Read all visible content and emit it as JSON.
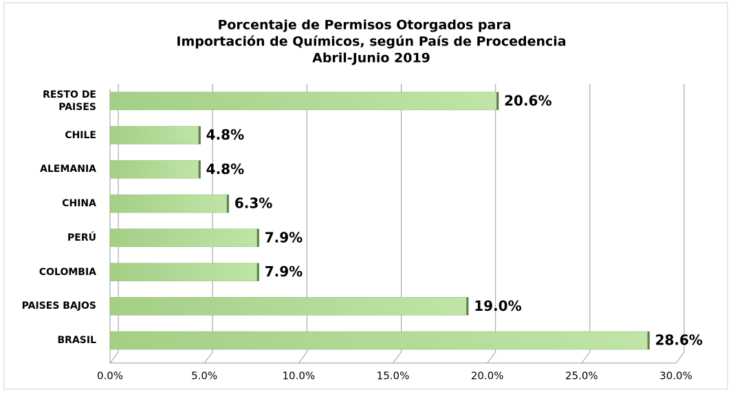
{
  "chart_data": {
    "type": "bar",
    "orientation": "horizontal",
    "title": [
      "Porcentaje de Permisos Otorgados para",
      "Importación de Químicos, según País de Procedencia",
      "Abril-Junio 2019"
    ],
    "categories": [
      "RESTO DE PAISES",
      "CHILE",
      "ALEMANIA",
      "CHINA",
      "PERÚ",
      "COLOMBIA",
      "PAISES BAJOS",
      "BRASIL"
    ],
    "values": [
      20.6,
      4.8,
      4.8,
      6.3,
      7.9,
      7.9,
      19.0,
      28.6
    ],
    "value_labels": [
      "20.6%",
      "4.8%",
      "4.8%",
      "6.3%",
      "7.9%",
      "7.9%",
      "19.0%",
      "28.6%"
    ],
    "color": "#a9d18e",
    "xlim": [
      0,
      30
    ],
    "xticks": [
      {
        "value": 0,
        "label": "0.0%"
      },
      {
        "value": 5,
        "label": "5.0%"
      },
      {
        "value": 10,
        "label": "10.0%"
      },
      {
        "value": 15,
        "label": "15.0%"
      },
      {
        "value": 20,
        "label": "20.0%"
      },
      {
        "value": 25,
        "label": "25.0%"
      },
      {
        "value": 30,
        "label": "30.0%"
      }
    ],
    "grid": true
  }
}
